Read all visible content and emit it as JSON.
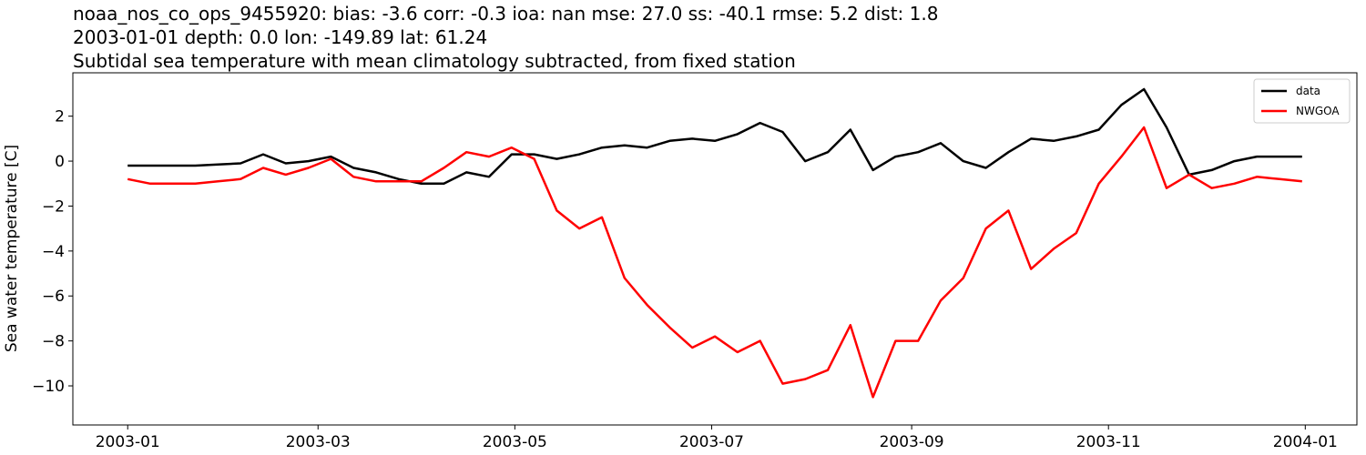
{
  "chart_data": {
    "type": "line",
    "title": [
      "noaa_nos_co_ops_9455920: bias: -3.6  corr: -0.3  ioa: nan  mse: 27.0  ss: -40.1  rmse: 5.2  dist: 1.8",
      "2003-01-01 depth: 0.0 lon: -149.89 lat: 61.24",
      "Subtidal sea temperature with mean climatology subtracted, from fixed station"
    ],
    "ylabel": "Sea water temperature [C]",
    "legend": "upper right",
    "x": [
      "2003-01-01",
      "2003-01-08",
      "2003-01-15",
      "2003-01-22",
      "2003-01-29",
      "2003-02-05",
      "2003-02-12",
      "2003-02-19",
      "2003-02-26",
      "2003-03-05",
      "2003-03-12",
      "2003-03-19",
      "2003-03-26",
      "2003-04-02",
      "2003-04-09",
      "2003-04-16",
      "2003-04-23",
      "2003-04-30",
      "2003-05-07",
      "2003-05-14",
      "2003-05-21",
      "2003-05-28",
      "2003-06-04",
      "2003-06-11",
      "2003-06-18",
      "2003-06-25",
      "2003-07-02",
      "2003-07-09",
      "2003-07-16",
      "2003-07-23",
      "2003-07-30",
      "2003-08-06",
      "2003-08-13",
      "2003-08-20",
      "2003-08-27",
      "2003-09-03",
      "2003-09-10",
      "2003-09-17",
      "2003-09-24",
      "2003-10-01",
      "2003-10-08",
      "2003-10-15",
      "2003-10-22",
      "2003-10-29",
      "2003-11-05",
      "2003-11-12",
      "2003-11-19",
      "2003-11-26",
      "2003-12-03",
      "2003-12-10",
      "2003-12-17",
      "2003-12-24",
      "2003-12-31"
    ],
    "series": [
      {
        "name": "data",
        "color": "#000000",
        "values": [
          -0.2,
          -0.2,
          -0.2,
          -0.2,
          -0.15,
          -0.1,
          0.3,
          -0.1,
          0.0,
          0.2,
          -0.3,
          -0.5,
          -0.8,
          -1.0,
          -1.0,
          -0.5,
          -0.7,
          0.3,
          0.3,
          0.1,
          0.3,
          0.6,
          0.7,
          0.6,
          0.9,
          1.0,
          0.9,
          1.2,
          1.7,
          1.3,
          0.0,
          0.4,
          1.4,
          -0.4,
          0.2,
          0.4,
          0.8,
          0.0,
          -0.3,
          0.4,
          1.0,
          0.9,
          1.1,
          1.4,
          2.5,
          3.2,
          1.5,
          -0.6,
          -0.4,
          0.0,
          0.2,
          0.2,
          0.2
        ]
      },
      {
        "name": "NWGOA",
        "color": "#ff0000",
        "values": [
          -0.8,
          -1.0,
          -1.0,
          -1.0,
          -0.9,
          -0.8,
          -0.3,
          -0.6,
          -0.3,
          0.1,
          -0.7,
          -0.9,
          -0.9,
          -0.9,
          -0.3,
          0.4,
          0.2,
          0.6,
          0.1,
          -2.2,
          -3.0,
          -2.5,
          -5.2,
          -6.4,
          -7.4,
          -8.3,
          -7.8,
          -8.5,
          -8.0,
          -9.9,
          -9.7,
          -9.3,
          -7.3,
          -10.5,
          -8.0,
          -8.0,
          -6.2,
          -5.2,
          -3.0,
          -2.2,
          -4.8,
          -3.9,
          -3.2,
          -1.0,
          0.2,
          1.5,
          -1.2,
          -0.6,
          -1.2,
          -1.0,
          -0.7,
          -0.8,
          -0.9
        ]
      }
    ],
    "xlim": [
      "2002-12-15",
      "2004-01-17"
    ],
    "xticks": [
      {
        "value": "2003-01-01",
        "label": "2003-01"
      },
      {
        "value": "2003-03-01",
        "label": "2003-03"
      },
      {
        "value": "2003-05-01",
        "label": "2003-05"
      },
      {
        "value": "2003-07-01",
        "label": "2003-07"
      },
      {
        "value": "2003-09-01",
        "label": "2003-09"
      },
      {
        "value": "2003-11-01",
        "label": "2003-11"
      },
      {
        "value": "2004-01-01",
        "label": "2004-01"
      }
    ],
    "ylim": [
      -11.74,
      3.93
    ],
    "yticks": [
      {
        "value": -10,
        "label": "−10"
      },
      {
        "value": -8,
        "label": "−8"
      },
      {
        "value": -6,
        "label": "−6"
      },
      {
        "value": -4,
        "label": "−4"
      },
      {
        "value": -2,
        "label": "−2"
      },
      0,
      2
    ]
  }
}
